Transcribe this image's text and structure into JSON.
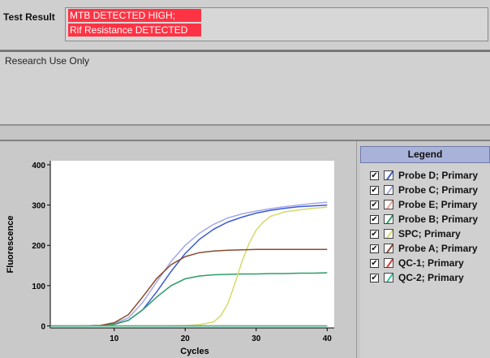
{
  "result": {
    "label": "Test Result",
    "lines": [
      "MTB DETECTED HIGH;",
      "Rif Resistance DETECTED"
    ],
    "highlight_color": "#ff3344"
  },
  "notes": {
    "text": "Research Use Only"
  },
  "legend": {
    "title": "Legend",
    "items": [
      {
        "label": "Probe D; Primary",
        "color": "#3a5bd6",
        "checked": true
      },
      {
        "label": "Probe C; Primary",
        "color": "#a4a8e8",
        "checked": true
      },
      {
        "label": "Probe E; Primary",
        "color": "#f0a090",
        "checked": true
      },
      {
        "label": "Probe B; Primary",
        "color": "#2e9e66",
        "checked": true
      },
      {
        "label": "SPC; Primary",
        "color": "#d8d86a",
        "checked": true
      },
      {
        "label": "Probe A; Primary",
        "color": "#8b4a2e",
        "checked": true
      },
      {
        "label": "QC-1; Primary",
        "color": "#e03a3a",
        "checked": true
      },
      {
        "label": "QC-2; Primary",
        "color": "#2ec8a0",
        "checked": true
      }
    ]
  },
  "chart_data": {
    "type": "line",
    "xlabel": "Cycles",
    "ylabel": "Fluorescence",
    "xlim": [
      1,
      41
    ],
    "ylim": [
      -5,
      410
    ],
    "xticks": [
      10,
      20,
      30,
      40
    ],
    "yticks": [
      0,
      100,
      200,
      300,
      400
    ],
    "grid": false,
    "series": [
      {
        "name": "Probe D; Primary",
        "color": "#3a5bd6",
        "x": [
          1,
          5,
          8,
          10,
          12,
          14,
          16,
          18,
          20,
          22,
          24,
          26,
          28,
          30,
          32,
          34,
          36,
          38,
          40
        ],
        "y": [
          0,
          0,
          1,
          4,
          14,
          40,
          85,
          135,
          180,
          215,
          240,
          258,
          270,
          280,
          287,
          292,
          296,
          298,
          300
        ]
      },
      {
        "name": "Probe C; Primary",
        "color": "#a4a8e8",
        "x": [
          1,
          5,
          8,
          10,
          12,
          14,
          16,
          18,
          20,
          22,
          24,
          26,
          28,
          30,
          32,
          34,
          36,
          38,
          40
        ],
        "y": [
          0,
          0,
          1,
          6,
          20,
          58,
          110,
          160,
          200,
          230,
          252,
          268,
          278,
          285,
          291,
          296,
          300,
          304,
          307
        ]
      },
      {
        "name": "Probe E; Primary",
        "color": "#f0a090",
        "x": [
          1,
          5,
          8,
          10,
          12,
          14,
          16,
          18,
          20,
          22,
          24,
          26,
          28,
          30,
          32,
          34,
          36,
          38,
          40
        ],
        "y": [
          0,
          0,
          0,
          0,
          0,
          0,
          0,
          0,
          0,
          0,
          0,
          0,
          0,
          0,
          0,
          0,
          0,
          0,
          0
        ]
      },
      {
        "name": "Probe B; Primary",
        "color": "#2e9e66",
        "x": [
          1,
          5,
          8,
          10,
          12,
          14,
          16,
          18,
          20,
          22,
          24,
          26,
          28,
          30,
          32,
          34,
          36,
          38,
          40
        ],
        "y": [
          0,
          0,
          1,
          4,
          14,
          40,
          72,
          100,
          117,
          124,
          127,
          128,
          129,
          129,
          130,
          130,
          131,
          131,
          132
        ]
      },
      {
        "name": "SPC; Primary",
        "color": "#d8d86a",
        "x": [
          1,
          5,
          10,
          15,
          20,
          22,
          24,
          25,
          26,
          27,
          28,
          29,
          30,
          31,
          32,
          34,
          36,
          38,
          40
        ],
        "y": [
          0,
          0,
          0,
          0,
          1,
          3,
          10,
          25,
          55,
          105,
          160,
          205,
          238,
          258,
          272,
          283,
          288,
          292,
          295
        ]
      },
      {
        "name": "Probe A; Primary",
        "color": "#8b4a2e",
        "x": [
          1,
          5,
          8,
          10,
          12,
          14,
          16,
          18,
          20,
          22,
          24,
          26,
          28,
          30,
          32,
          34,
          36,
          38,
          40
        ],
        "y": [
          0,
          0,
          1,
          8,
          28,
          72,
          118,
          152,
          172,
          182,
          186,
          188,
          189,
          190,
          190,
          190,
          190,
          190,
          190
        ]
      },
      {
        "name": "QC-1; Primary",
        "color": "#e03a3a",
        "x": [
          1,
          5,
          10,
          15,
          20,
          25,
          30,
          35,
          40
        ],
        "y": [
          0,
          0,
          0,
          0,
          0,
          0,
          0,
          0,
          0
        ]
      },
      {
        "name": "QC-2; Primary",
        "color": "#2ec8a0",
        "x": [
          1,
          5,
          10,
          15,
          20,
          25,
          30,
          35,
          40
        ],
        "y": [
          0,
          0,
          0,
          0,
          0,
          0,
          0,
          0,
          0
        ]
      }
    ]
  }
}
